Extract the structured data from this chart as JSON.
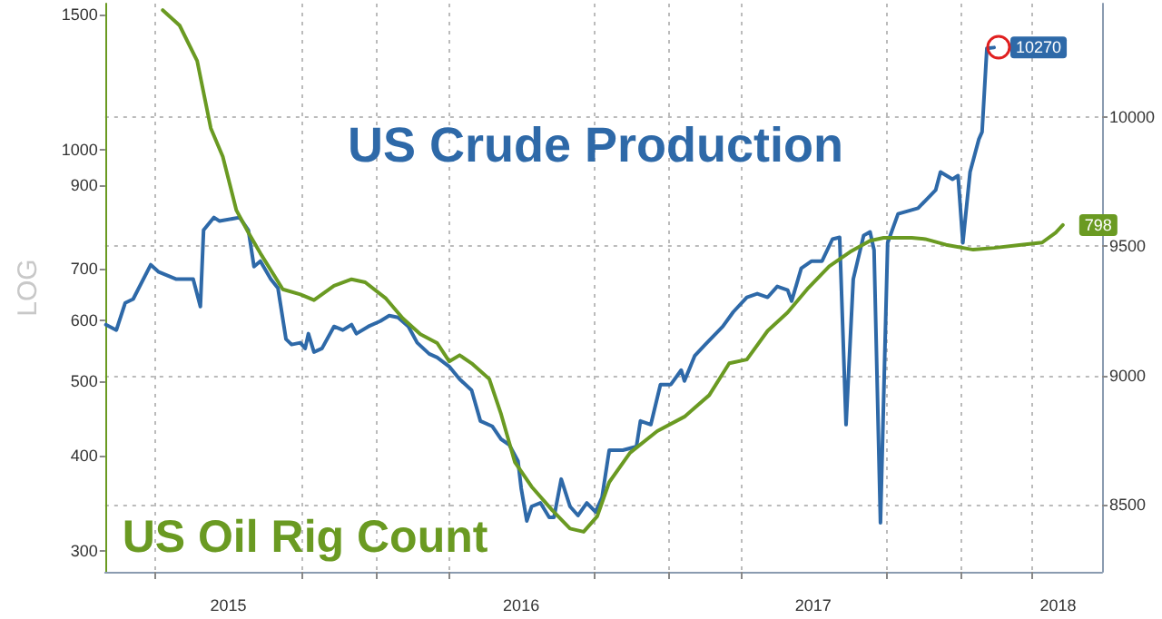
{
  "chart_data": {
    "type": "line",
    "ylabel": "LOG",
    "log": "y",
    "grid": true,
    "marker": "none",
    "xlim": [
      "2015-01-28",
      "2018-06-27"
    ],
    "xticks": [
      {
        "value": "2015-04-01",
        "label": null
      },
      {
        "value": "2015-07-01",
        "label": "2015"
      },
      {
        "value": "2015-10-01",
        "label": null
      },
      {
        "value": "2016-01-01",
        "label": null
      },
      {
        "value": "2016-04-01",
        "label": null
      },
      {
        "value": "2016-07-01",
        "label": "2016"
      },
      {
        "value": "2016-10-01",
        "label": null
      },
      {
        "value": "2017-01-01",
        "label": null
      },
      {
        "value": "2017-04-01",
        "label": null
      },
      {
        "value": "2017-07-01",
        "label": "2017"
      },
      {
        "value": "2017-10-01",
        "label": null
      },
      {
        "value": "2018-01-01",
        "label": null
      },
      {
        "value": "2018-04-01",
        "label": null
      },
      {
        "value": "2018-05-03",
        "label": "2018"
      }
    ],
    "ylim": [
      282,
      1550
    ],
    "yticks": [
      300,
      400,
      500,
      600,
      700,
      900,
      1000,
      1500
    ],
    "y2lim": [
      8240,
      10440
    ],
    "y2ticks": [
      8500,
      9000,
      9500,
      10000
    ],
    "series": [
      {
        "name": "US Crude Production",
        "color": "#2e69a8",
        "axis": "y2",
        "x": [
          "2015-01-29",
          "2015-02-11",
          "2015-02-22",
          "2015-03-04",
          "2015-03-26",
          "2015-04-05",
          "2015-04-27",
          "2015-05-18",
          "2015-05-27",
          "2015-05-31",
          "2015-06-13",
          "2015-06-20",
          "2015-07-15",
          "2015-07-26",
          "2015-08-02",
          "2015-08-10",
          "2015-08-23",
          "2015-09-01",
          "2015-09-11",
          "2015-09-18",
          "2015-09-29",
          "2015-10-05",
          "2015-10-09",
          "2015-10-16",
          "2015-10-26",
          "2015-11-10",
          "2015-11-21",
          "2015-12-02",
          "2015-12-08",
          "2015-12-23",
          "2016-01-07",
          "2016-01-18",
          "2016-01-29",
          "2016-02-11",
          "2016-02-22",
          "2016-03-08",
          "2016-03-18",
          "2016-04-02",
          "2016-04-15",
          "2016-04-30",
          "2016-05-11",
          "2016-05-26",
          "2016-06-06",
          "2016-06-16",
          "2016-06-27",
          "2016-07-01",
          "2016-07-08",
          "2016-07-14",
          "2016-07-25",
          "2016-08-05",
          "2016-08-11",
          "2016-08-20",
          "2016-08-31",
          "2016-09-10",
          "2016-09-21",
          "2016-10-02",
          "2016-10-10",
          "2016-10-19",
          "2016-11-05",
          "2016-11-22",
          "2016-11-27",
          "2016-12-10",
          "2016-12-22",
          "2017-01-04",
          "2017-01-17",
          "2017-01-21",
          "2017-02-03",
          "2017-02-16",
          "2017-03-10",
          "2017-03-23",
          "2017-04-09",
          "2017-04-22",
          "2017-05-05",
          "2017-05-17",
          "2017-05-30",
          "2017-06-04",
          "2017-06-16",
          "2017-06-29",
          "2017-07-12",
          "2017-07-25",
          "2017-08-03",
          "2017-08-11",
          "2017-08-20",
          "2017-09-02",
          "2017-09-10",
          "2017-09-15",
          "2017-09-23",
          "2017-10-02",
          "2017-10-15",
          "2017-11-09",
          "2017-12-01",
          "2017-12-07",
          "2017-12-22",
          "2017-12-29",
          "2018-01-04",
          "2018-01-13",
          "2018-01-24",
          "2018-01-28",
          "2018-02-03",
          "2018-02-12"
        ],
        "values": [
          9197,
          9176,
          9281,
          9296,
          9429,
          9401,
          9373,
          9373,
          9267,
          9563,
          9612,
          9598,
          9612,
          9563,
          9422,
          9443,
          9373,
          9338,
          9141,
          9120,
          9127,
          9105,
          9162,
          9091,
          9105,
          9190,
          9176,
          9197,
          9162,
          9190,
          9211,
          9232,
          9225,
          9190,
          9127,
          9084,
          9070,
          9035,
          8986,
          8943,
          8824,
          8803,
          8753,
          8732,
          8669,
          8563,
          8437,
          8493,
          8507,
          8451,
          8451,
          8599,
          8493,
          8458,
          8507,
          8472,
          8528,
          8711,
          8711,
          8725,
          8824,
          8810,
          8965,
          8965,
          9021,
          8979,
          9077,
          9120,
          9190,
          9246,
          9303,
          9317,
          9303,
          9345,
          9331,
          9288,
          9415,
          9443,
          9443,
          9528,
          9535,
          8810,
          9373,
          9542,
          9556,
          9486,
          8430,
          9514,
          9626,
          9648,
          9718,
          9788,
          9760,
          9774,
          9514,
          9788,
          9915,
          9943,
          10267,
          10270
        ],
        "value_labels": [
          null,
          null,
          null,
          null,
          null,
          null,
          null,
          null,
          null,
          null,
          null,
          null,
          null,
          null,
          null,
          null,
          null,
          null,
          null,
          null,
          null,
          null,
          null,
          null,
          null,
          null,
          null,
          null,
          null,
          null,
          null,
          null,
          null,
          null,
          null,
          null,
          null,
          null,
          null,
          null,
          null,
          null,
          null,
          null,
          null,
          null,
          null,
          null,
          null,
          null,
          null,
          null,
          null,
          null,
          null,
          null,
          null,
          null,
          null,
          null,
          null,
          null,
          null,
          null,
          null,
          null,
          null,
          null,
          null,
          null,
          null,
          null,
          null,
          null,
          null,
          null,
          null,
          null,
          null,
          null,
          null,
          null,
          null,
          null,
          null,
          null,
          null,
          null,
          null,
          null,
          null,
          null,
          null,
          null,
          null,
          null,
          null,
          null,
          null,
          "10270"
        ]
      },
      {
        "name": "US Oil Rig Count",
        "color": "#6a9a22",
        "x": [
          "2015-04-10",
          "2015-05-01",
          "2015-05-23",
          "2015-06-09",
          "2015-06-24",
          "2015-07-11",
          "2015-07-26",
          "2015-08-10",
          "2015-09-07",
          "2015-09-29",
          "2015-10-16",
          "2015-11-10",
          "2015-12-02",
          "2015-12-19",
          "2016-01-14",
          "2016-02-04",
          "2016-02-26",
          "2016-03-18",
          "2016-04-02",
          "2016-04-15",
          "2016-04-30",
          "2016-05-22",
          "2016-06-06",
          "2016-06-23",
          "2016-07-14",
          "2016-08-09",
          "2016-08-31",
          "2016-09-17",
          "2016-10-04",
          "2016-10-19",
          "2016-11-14",
          "2016-12-18",
          "2017-01-21",
          "2017-02-21",
          "2017-03-18",
          "2017-04-09",
          "2017-05-05",
          "2017-05-30",
          "2017-06-25",
          "2017-07-21",
          "2017-08-16",
          "2017-09-10",
          "2017-09-27",
          "2017-11-01",
          "2017-11-18",
          "2017-12-14",
          "2018-01-17",
          "2018-02-12",
          "2018-03-18",
          "2018-04-13",
          "2018-04-30",
          "2018-05-09"
        ],
        "values": [
          1520,
          1452,
          1305,
          1067,
          980,
          834,
          780,
          733,
          658,
          648,
          637,
          665,
          678,
          672,
          640,
          603,
          575,
          560,
          530,
          540,
          527,
          503,
          452,
          392,
          364,
          339,
          321,
          318,
          333,
          369,
          403,
          430,
          449,
          479,
          527,
          533,
          581,
          614,
          661,
          705,
          736,
          761,
          768,
          768,
          765,
          752,
          741,
          745,
          752,
          757,
          780,
          798
        ],
        "value_labels": [
          null,
          null,
          null,
          null,
          null,
          null,
          null,
          null,
          null,
          null,
          null,
          null,
          null,
          null,
          null,
          null,
          null,
          null,
          null,
          null,
          null,
          null,
          null,
          null,
          null,
          null,
          null,
          null,
          null,
          null,
          null,
          null,
          null,
          null,
          null,
          null,
          null,
          null,
          null,
          null,
          null,
          null,
          null,
          null,
          null,
          null,
          null,
          null,
          null,
          null,
          null,
          "798"
        ]
      }
    ]
  }
}
